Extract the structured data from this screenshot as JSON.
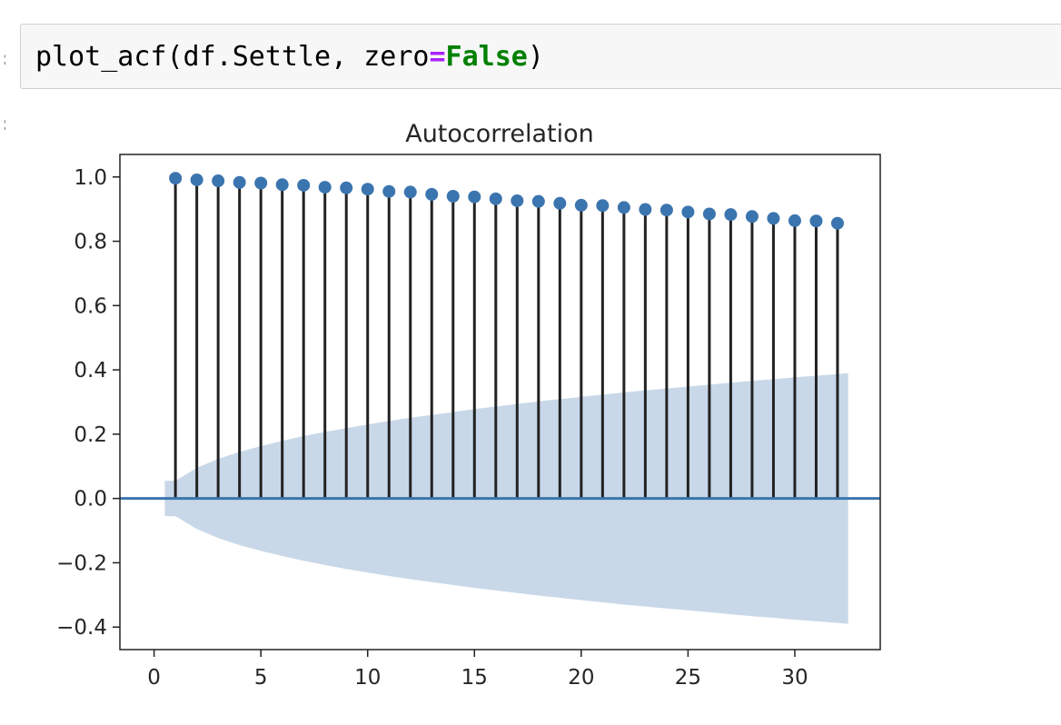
{
  "cell": {
    "code_parts": [
      "plot_acf(df.Settle, zero",
      "=",
      "False",
      ")"
    ]
  },
  "colors": {
    "marker": "#3b75af",
    "stem": "#222222",
    "baseline": "#3b75af",
    "confint": "#c9d8e8"
  },
  "chart_data": {
    "type": "stem",
    "title": "Autocorrelation",
    "xlabel": "",
    "ylabel": "",
    "xlim": [
      -1.6,
      34
    ],
    "ylim": [
      -0.47,
      1.07
    ],
    "xticks": [
      0,
      5,
      10,
      15,
      20,
      25,
      30
    ],
    "xtick_labels": [
      "0",
      "5",
      "10",
      "15",
      "20",
      "25",
      "30"
    ],
    "yticks": [
      -0.4,
      -0.2,
      0.0,
      0.2,
      0.4,
      0.6,
      0.8,
      1.0
    ],
    "ytick_labels": [
      "−0.4",
      "−0.2",
      "0.0",
      "0.2",
      "0.4",
      "0.6",
      "0.8",
      "1.0"
    ],
    "grid": false,
    "x": [
      1,
      2,
      3,
      4,
      5,
      6,
      7,
      8,
      9,
      10,
      11,
      12,
      13,
      14,
      15,
      16,
      17,
      18,
      19,
      20,
      21,
      22,
      23,
      24,
      25,
      26,
      27,
      28,
      29,
      30,
      31,
      32
    ],
    "values": [
      0.996,
      0.991,
      0.988,
      0.983,
      0.981,
      0.976,
      0.974,
      0.968,
      0.966,
      0.962,
      0.955,
      0.953,
      0.946,
      0.94,
      0.938,
      0.932,
      0.926,
      0.924,
      0.918,
      0.912,
      0.911,
      0.905,
      0.899,
      0.897,
      0.891,
      0.885,
      0.883,
      0.877,
      0.871,
      0.864,
      0.863,
      0.856
    ],
    "confint": {
      "x": [
        0.5,
        1,
        2,
        3,
        4,
        5,
        6,
        7,
        8,
        9,
        10,
        11,
        12,
        13,
        14,
        15,
        16,
        17,
        18,
        19,
        20,
        21,
        22,
        23,
        24,
        25,
        26,
        27,
        28,
        29,
        30,
        31,
        32,
        32.5
      ],
      "upper": [
        0.055,
        0.055,
        0.095,
        0.123,
        0.145,
        0.163,
        0.179,
        0.194,
        0.207,
        0.219,
        0.23,
        0.241,
        0.251,
        0.26,
        0.269,
        0.278,
        0.286,
        0.294,
        0.302,
        0.309,
        0.316,
        0.323,
        0.33,
        0.336,
        0.342,
        0.348,
        0.354,
        0.36,
        0.366,
        0.371,
        0.377,
        0.382,
        0.387,
        0.39
      ]
    }
  }
}
